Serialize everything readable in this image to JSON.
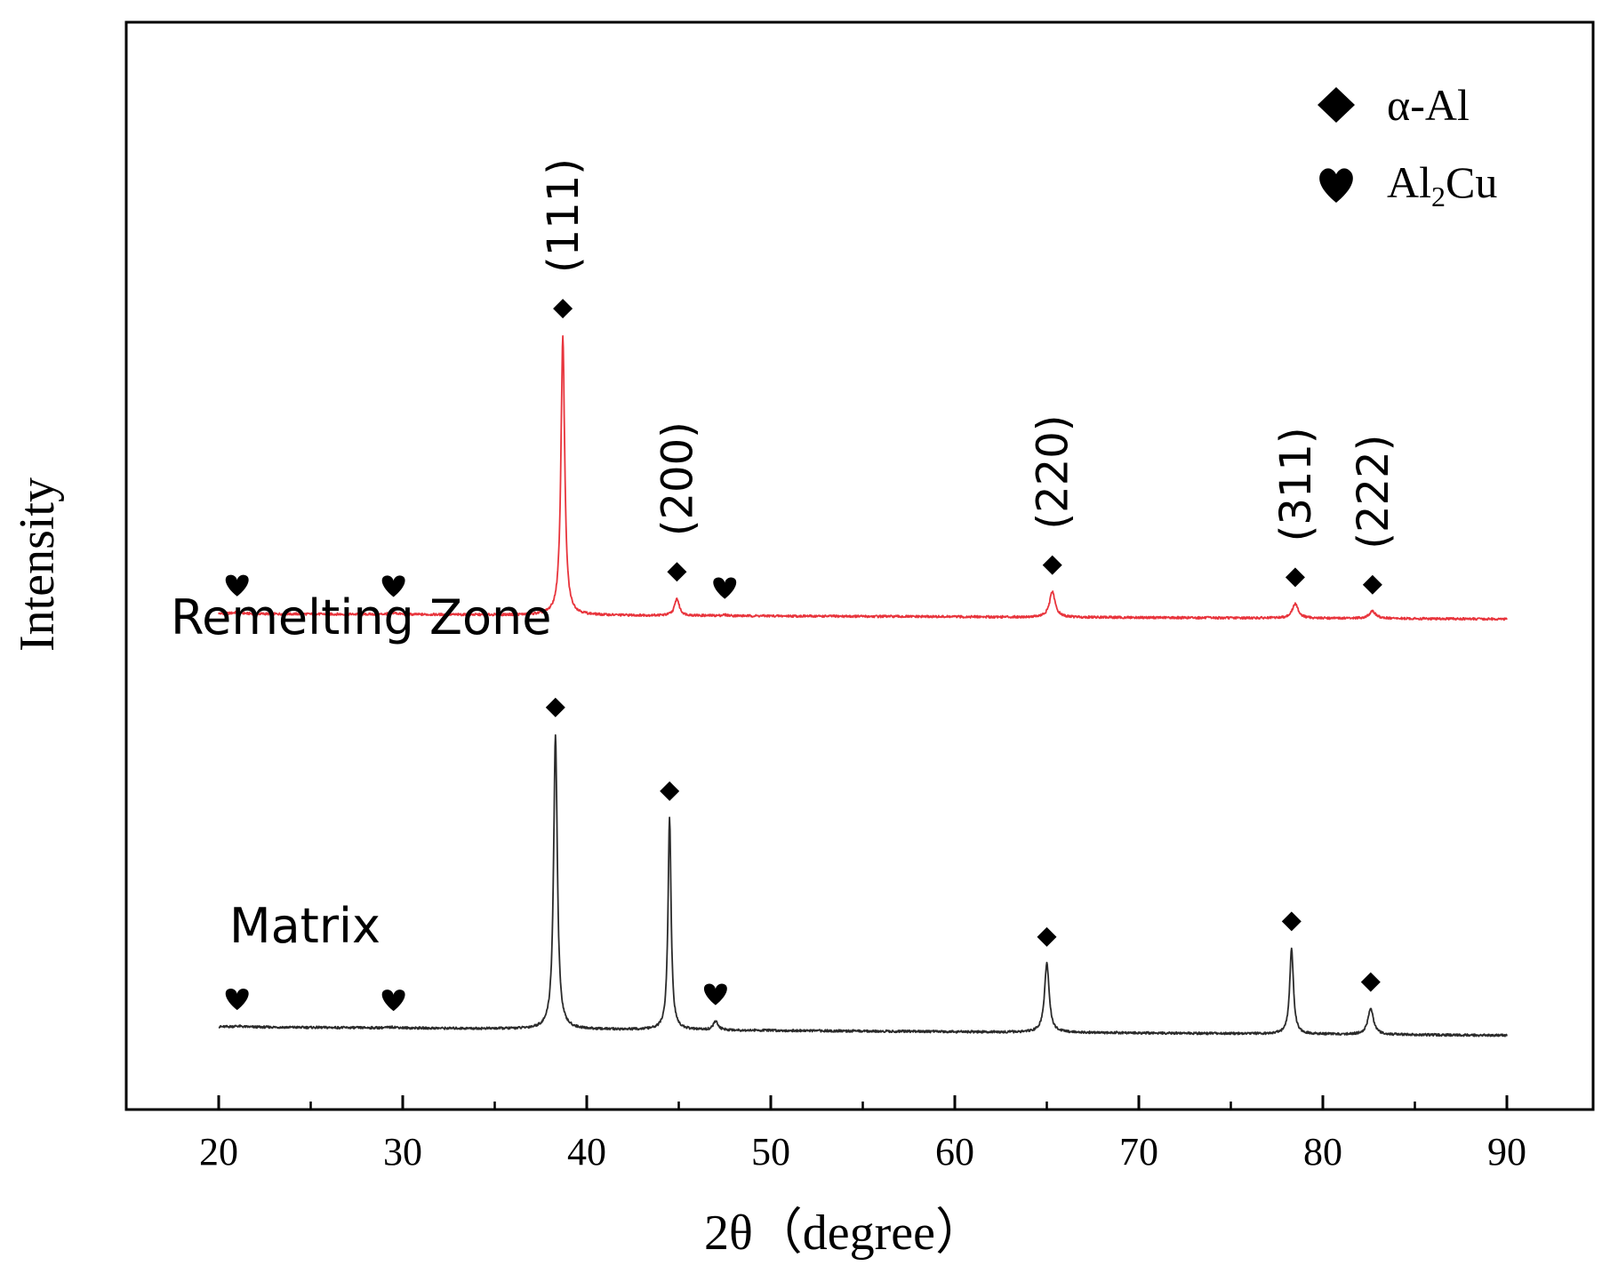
{
  "chart_data": {
    "type": "line",
    "title": "",
    "xlabel": "2θ（degree）",
    "ylabel": "Intensity",
    "xlim": [
      15,
      95
    ],
    "ylim": [
      0,
      1
    ],
    "x_ticks": [
      20,
      30,
      40,
      50,
      60,
      70,
      80,
      90
    ],
    "x_tick_labels": [
      "20",
      "30",
      "40",
      "50",
      "60",
      "70",
      "80",
      "90"
    ],
    "minor_x_ticks": [
      25,
      35,
      45,
      55,
      65,
      75,
      85
    ],
    "y_ticks_shown": false,
    "grid": false,
    "x_range_data": [
      20,
      90
    ],
    "legend": {
      "placement": "top-right",
      "entries": [
        {
          "symbol": "diamond",
          "label": "α-Al"
        },
        {
          "symbol": "heart",
          "label_main": "Al",
          "label_sub": "2",
          "label_tail": "Cu"
        }
      ]
    },
    "series": [
      {
        "name": "Remelting Zone",
        "color": "#e8343c",
        "baseline_start": 0.345,
        "baseline_end": 0.326,
        "peaks": [
          {
            "x": 21.0,
            "height": 0.005,
            "width": 0.3
          },
          {
            "x": 29.5,
            "height": 0.005,
            "width": 0.3
          },
          {
            "x": 38.7,
            "height": 0.99,
            "width": 0.12
          },
          {
            "x": 44.9,
            "height": 0.06,
            "width": 0.15
          },
          {
            "x": 47.5,
            "height": 0.003,
            "width": 0.2
          },
          {
            "x": 65.3,
            "height": 0.09,
            "width": 0.18
          },
          {
            "x": 78.5,
            "height": 0.05,
            "width": 0.2
          },
          {
            "x": 82.7,
            "height": 0.025,
            "width": 0.22
          }
        ]
      },
      {
        "name": "Matrix",
        "color": "#2b2b2b",
        "baseline_start": 0.0,
        "baseline_end": -0.03,
        "peaks": [
          {
            "x": 21.0,
            "height": 0.003,
            "width": 0.3
          },
          {
            "x": 29.5,
            "height": 0.003,
            "width": 0.3
          },
          {
            "x": 38.3,
            "height": 1.03,
            "width": 0.12
          },
          {
            "x": 44.5,
            "height": 0.74,
            "width": 0.1
          },
          {
            "x": 47.0,
            "height": 0.03,
            "width": 0.15
          },
          {
            "x": 65.0,
            "height": 0.24,
            "width": 0.15
          },
          {
            "x": 78.3,
            "height": 0.3,
            "width": 0.12
          },
          {
            "x": 82.6,
            "height": 0.09,
            "width": 0.18
          }
        ]
      }
    ],
    "series_labels": [
      "Remelting Zone",
      "Matrix"
    ],
    "markers": [
      {
        "series": "Remelting Zone",
        "symbol": "heart",
        "x": 21.0
      },
      {
        "series": "Remelting Zone",
        "symbol": "heart",
        "x": 29.5
      },
      {
        "series": "Remelting Zone",
        "symbol": "diamond",
        "x": 38.7
      },
      {
        "series": "Remelting Zone",
        "symbol": "diamond",
        "x": 44.9
      },
      {
        "series": "Remelting Zone",
        "symbol": "heart",
        "x": 47.5
      },
      {
        "series": "Remelting Zone",
        "symbol": "diamond",
        "x": 65.3
      },
      {
        "series": "Remelting Zone",
        "symbol": "diamond",
        "x": 78.5
      },
      {
        "series": "Remelting Zone",
        "symbol": "diamond",
        "x": 82.7
      },
      {
        "series": "Matrix",
        "symbol": "heart",
        "x": 21.0
      },
      {
        "series": "Matrix",
        "symbol": "heart",
        "x": 29.5
      },
      {
        "series": "Matrix",
        "symbol": "diamond",
        "x": 38.3
      },
      {
        "series": "Matrix",
        "symbol": "diamond",
        "x": 44.5
      },
      {
        "series": "Matrix",
        "symbol": "heart",
        "x": 47.0
      },
      {
        "series": "Matrix",
        "symbol": "diamond",
        "x": 65.0
      },
      {
        "series": "Matrix",
        "symbol": "diamond",
        "x": 78.3
      },
      {
        "series": "Matrix",
        "symbol": "diamond",
        "x": 82.6
      }
    ],
    "peak_labels": [
      {
        "label": "(111)",
        "x": 38.7
      },
      {
        "label": "(200)",
        "x": 44.9
      },
      {
        "label": "(220)",
        "x": 65.3
      },
      {
        "label": "(311)",
        "x": 78.5
      },
      {
        "label": "(222)",
        "x": 82.7
      }
    ]
  }
}
